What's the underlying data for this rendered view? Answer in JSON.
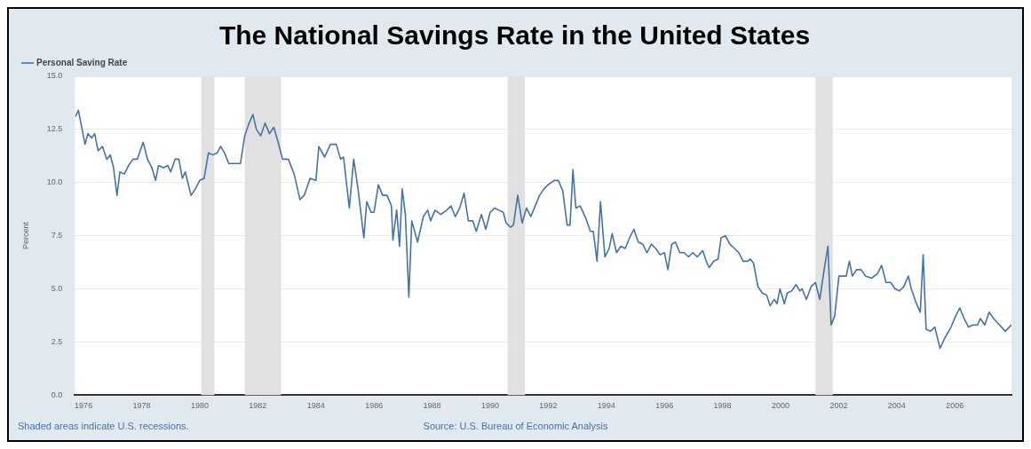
{
  "chart_data": {
    "type": "line",
    "title": "The National Savings Rate in the United States",
    "ylabel": "Percent",
    "annotations": [
      "Shaded areas indicate U.S. recessions.",
      "Source: U.S. Bureau of Economic Analysis"
    ],
    "legend": "top left",
    "grid": "y",
    "marker": "none",
    "line_style": "solid",
    "xlim": [
      1975.7,
      2007.95
    ],
    "xticks": [
      1976,
      1978,
      1980,
      1982,
      1984,
      1986,
      1988,
      1990,
      1992,
      1994,
      1996,
      1998,
      2000,
      2002,
      2004,
      2006
    ],
    "ylim": [
      0,
      15
    ],
    "yticks": [
      {
        "value": 0,
        "label": "0.0"
      },
      2.5,
      {
        "value": 5,
        "label": "5.0"
      },
      7.5,
      {
        "value": 10,
        "label": "10.0"
      },
      12.5,
      {
        "value": 15,
        "label": "15.0"
      }
    ],
    "bands": [
      {
        "axis": "x",
        "from": 1980.05,
        "to": 1980.5,
        "color": "#e1e1e1"
      },
      {
        "axis": "x",
        "from": 1981.55,
        "to": 1982.8,
        "color": "#e1e1e1"
      },
      {
        "axis": "x",
        "from": 1990.6,
        "to": 1991.2,
        "color": "#e1e1e1"
      },
      {
        "axis": "x",
        "from": 2001.2,
        "to": 2001.8,
        "color": "#e1e1e1"
      }
    ],
    "series": [
      {
        "name": "Personal Saving Rate",
        "color": "#4572a7",
        "x": [
          1975.72,
          1975.82,
          1975.95,
          1976.05,
          1976.15,
          1976.28,
          1976.38,
          1976.5,
          1976.65,
          1976.8,
          1976.92,
          1977.03,
          1977.15,
          1977.25,
          1977.4,
          1977.55,
          1977.7,
          1977.85,
          1978.05,
          1978.2,
          1978.35,
          1978.48,
          1978.58,
          1978.75,
          1978.9,
          1979.0,
          1979.15,
          1979.28,
          1979.4,
          1979.5,
          1979.7,
          1979.85,
          1980.0,
          1980.15,
          1980.3,
          1980.45,
          1980.6,
          1980.72,
          1980.85,
          1981.0,
          1981.2,
          1981.4,
          1981.55,
          1981.7,
          1981.83,
          1981.95,
          1982.1,
          1982.25,
          1982.4,
          1982.55,
          1982.7,
          1982.85,
          1983.05,
          1983.25,
          1983.45,
          1983.6,
          1983.8,
          1984.0,
          1984.1,
          1984.3,
          1984.5,
          1984.7,
          1984.85,
          1984.95,
          1985.15,
          1985.3,
          1985.45,
          1985.65,
          1985.75,
          1985.9,
          1986.0,
          1986.15,
          1986.3,
          1986.45,
          1986.6,
          1986.65,
          1986.78,
          1986.88,
          1986.97,
          1987.08,
          1987.2,
          1987.3,
          1987.5,
          1987.7,
          1987.85,
          1987.95,
          1988.1,
          1988.3,
          1988.5,
          1988.65,
          1988.8,
          1988.95,
          1989.1,
          1989.25,
          1989.4,
          1989.52,
          1989.7,
          1989.85,
          1990.0,
          1990.15,
          1990.3,
          1990.45,
          1990.55,
          1990.7,
          1990.8,
          1990.95,
          1991.1,
          1991.25,
          1991.4,
          1991.55,
          1991.7,
          1991.85,
          1992.0,
          1992.2,
          1992.35,
          1992.5,
          1992.65,
          1992.75,
          1992.85,
          1992.95,
          1993.1,
          1993.3,
          1993.45,
          1993.55,
          1993.68,
          1993.8,
          1993.95,
          1994.1,
          1994.2,
          1994.35,
          1994.5,
          1994.65,
          1994.8,
          1994.95,
          1995.1,
          1995.25,
          1995.4,
          1995.55,
          1995.7,
          1995.85,
          1996.0,
          1996.12,
          1996.25,
          1996.38,
          1996.53,
          1996.68,
          1996.83,
          1996.98,
          1997.13,
          1997.32,
          1997.44,
          1997.54,
          1997.7,
          1997.85,
          1997.95,
          1998.1,
          1998.25,
          1998.41,
          1998.56,
          1998.71,
          1998.86,
          1998.96,
          1999.07,
          1999.22,
          1999.37,
          1999.52,
          1999.64,
          1999.78,
          1999.88,
          1999.98,
          2000.13,
          2000.23,
          2000.38,
          2000.53,
          2000.66,
          2000.74,
          2000.89,
          2001.05,
          2001.2,
          2001.35,
          2001.5,
          2001.63,
          2001.74,
          2001.86,
          2002.01,
          2002.11,
          2002.26,
          2002.37,
          2002.47,
          2002.62,
          2002.77,
          2002.92,
          2003.13,
          2003.33,
          2003.48,
          2003.63,
          2003.79,
          2003.94,
          2004.09,
          2004.24,
          2004.4,
          2004.5,
          2004.65,
          2004.81,
          2004.91,
          2005.01,
          2005.16,
          2005.31,
          2005.49,
          2005.66,
          2005.87,
          2006.02,
          2006.17,
          2006.32,
          2006.47,
          2006.62,
          2006.78,
          2006.88,
          2007.03,
          2007.18,
          2007.34,
          2007.54,
          2007.74,
          2007.95
        ],
        "values": [
          13.1,
          13.4,
          12.5,
          11.8,
          12.3,
          12.1,
          12.3,
          11.5,
          11.7,
          11.1,
          11.3,
          10.7,
          9.4,
          10.5,
          10.4,
          10.8,
          11.1,
          11.1,
          11.9,
          11.1,
          10.7,
          10.1,
          10.8,
          10.7,
          10.8,
          10.5,
          11.1,
          11.1,
          10.2,
          10.5,
          9.4,
          9.7,
          10.1,
          10.2,
          11.4,
          11.3,
          11.4,
          11.7,
          11.4,
          10.9,
          10.9,
          10.9,
          12.2,
          12.8,
          13.2,
          12.5,
          12.2,
          12.8,
          12.3,
          12.6,
          11.9,
          11.1,
          11.1,
          10.4,
          9.2,
          9.4,
          10.2,
          10.1,
          11.7,
          11.2,
          11.8,
          11.8,
          11.1,
          11.2,
          8.8,
          11.1,
          9.7,
          7.4,
          9.1,
          8.6,
          8.6,
          9.9,
          9.4,
          9.4,
          8.9,
          7.3,
          8.7,
          7.0,
          9.7,
          8.5,
          4.6,
          8.2,
          7.2,
          8.4,
          8.7,
          8.2,
          8.7,
          8.5,
          8.7,
          8.9,
          8.4,
          8.8,
          9.5,
          8.2,
          8.2,
          7.7,
          8.5,
          7.8,
          8.6,
          8.8,
          8.7,
          8.6,
          8.1,
          7.9,
          8.0,
          9.4,
          8.1,
          8.8,
          8.4,
          8.9,
          9.4,
          9.7,
          9.9,
          10.1,
          10.1,
          9.6,
          8.0,
          8.0,
          10.6,
          8.8,
          8.9,
          8.3,
          7.7,
          7.7,
          6.3,
          9.1,
          6.5,
          6.9,
          7.6,
          6.7,
          7.0,
          6.9,
          7.4,
          7.8,
          7.2,
          7.1,
          6.7,
          7.1,
          6.9,
          6.6,
          6.7,
          5.9,
          7.1,
          7.2,
          6.7,
          6.7,
          6.5,
          6.7,
          6.5,
          6.8,
          6.3,
          6.0,
          6.3,
          6.4,
          7.4,
          7.5,
          7.1,
          6.9,
          6.7,
          6.3,
          6.3,
          6.4,
          6.2,
          5.1,
          4.8,
          4.7,
          4.2,
          4.5,
          4.3,
          5.0,
          4.3,
          4.8,
          4.9,
          5.2,
          4.9,
          5.0,
          4.5,
          5.1,
          5.3,
          4.5,
          5.9,
          7.0,
          3.3,
          3.7,
          5.6,
          5.6,
          5.6,
          6.3,
          5.6,
          5.9,
          5.9,
          5.6,
          5.5,
          5.7,
          6.1,
          5.3,
          5.3,
          5.0,
          4.9,
          5.1,
          5.6,
          5.0,
          4.4,
          3.9,
          6.6,
          3.1,
          3.0,
          3.2,
          2.2,
          2.7,
          3.2,
          3.7,
          4.1,
          3.6,
          3.2,
          3.3,
          3.3,
          3.6,
          3.3,
          3.9,
          3.6,
          3.3,
          3.0,
          3.3
        ]
      }
    ]
  }
}
